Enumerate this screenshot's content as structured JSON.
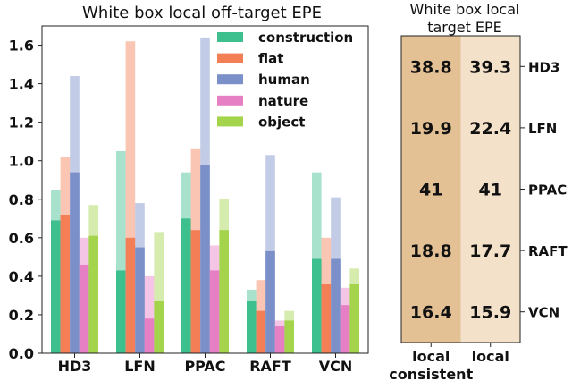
{
  "chart_data": [
    {
      "type": "bar",
      "title": "White box local off-target EPE",
      "categories": [
        "HD3",
        "LFN",
        "PPAC",
        "RAFT",
        "VCN"
      ],
      "ylim": [
        0,
        1.7
      ],
      "yticks": [
        0.0,
        0.2,
        0.4,
        0.6,
        0.8,
        1.0,
        1.2,
        1.4,
        1.6
      ],
      "ytick_labels": [
        "0.0",
        "0.2",
        "0.4",
        "0.6",
        "0.8",
        "1.0",
        "1.2",
        "1.4",
        "1.6"
      ],
      "legend_position": "top-right",
      "grid": false,
      "series": [
        {
          "name": "construction",
          "color": "#3dbf8e",
          "values": [
            0.69,
            0.43,
            0.7,
            0.27,
            0.49
          ],
          "upper_values": [
            0.85,
            1.05,
            0.94,
            0.33,
            0.94
          ]
        },
        {
          "name": "flat",
          "color": "#f47f56",
          "values": [
            0.72,
            0.6,
            0.64,
            0.22,
            0.36
          ],
          "upper_values": [
            1.02,
            1.62,
            1.06,
            0.38,
            0.6
          ]
        },
        {
          "name": "human",
          "color": "#7b8fc9",
          "values": [
            0.94,
            0.55,
            0.98,
            0.53,
            0.49
          ],
          "upper_values": [
            1.44,
            0.78,
            1.64,
            1.03,
            0.81
          ]
        },
        {
          "name": "nature",
          "color": "#e77fc5",
          "values": [
            0.46,
            0.18,
            0.43,
            0.14,
            0.25
          ],
          "upper_values": [
            0.6,
            0.4,
            0.56,
            0.17,
            0.34
          ]
        },
        {
          "name": "object",
          "color": "#a4d44c",
          "values": [
            0.61,
            0.27,
            0.64,
            0.17,
            0.36
          ],
          "upper_values": [
            0.77,
            0.63,
            0.8,
            0.22,
            0.44
          ]
        }
      ]
    },
    {
      "type": "heatmap",
      "title_lines": [
        "White box local",
        "target EPE"
      ],
      "columns": [
        "local consistent",
        "local"
      ],
      "column_label_lines": [
        [
          "local",
          "consistent"
        ],
        [
          "local"
        ]
      ],
      "rows": [
        "HD3",
        "LFN",
        "PPAC",
        "RAFT",
        "VCN"
      ],
      "values": [
        [
          "38.8",
          "39.3"
        ],
        [
          "19.9",
          "22.4"
        ],
        [
          "41",
          "41"
        ],
        [
          "18.8",
          "17.7"
        ],
        [
          "16.4",
          "15.9"
        ]
      ],
      "column_colors": [
        "#e3c194",
        "#f3e2c9"
      ]
    }
  ]
}
